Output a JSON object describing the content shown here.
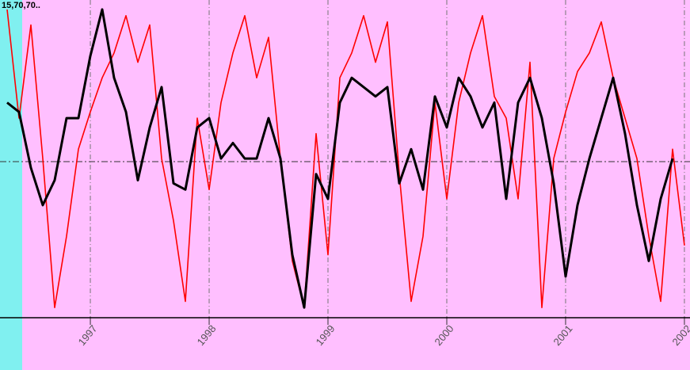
{
  "chart_data": {
    "type": "line",
    "label": "15,70,70..",
    "xlim": [
      1996.293,
      2002.047
    ],
    "xticks": [
      1997,
      1998,
      1999,
      2000,
      2001,
      2002
    ],
    "ylim": [
      0,
      100
    ],
    "hline": 50,
    "grid": true,
    "x": [
      1996.3,
      1996.4,
      1996.5,
      1996.6,
      1996.7,
      1996.8,
      1996.9,
      1997.0,
      1997.1,
      1997.2,
      1997.3,
      1997.4,
      1997.5,
      1997.6,
      1997.7,
      1997.8,
      1997.9,
      1998.0,
      1998.1,
      1998.2,
      1998.3,
      1998.4,
      1998.5,
      1998.6,
      1998.7,
      1998.8,
      1998.9,
      1999.0,
      1999.1,
      1999.2,
      1999.3,
      1999.4,
      1999.5,
      1999.6,
      1999.7,
      1999.8,
      1999.9,
      2000.0,
      2000.1,
      2000.2,
      2000.3,
      2000.4,
      2000.5,
      2000.6,
      2000.7,
      2000.8,
      2000.9,
      2001.0,
      2001.1,
      2001.2,
      2001.3,
      2001.4,
      2001.5,
      2001.6,
      2001.7,
      2001.8,
      2001.9,
      2002.0
    ],
    "series": [
      {
        "color": "#ff0000",
        "values": [
          99,
          64,
          94,
          51,
          3,
          26,
          54,
          66,
          77,
          85,
          97,
          82,
          94,
          51,
          31,
          5,
          64,
          41,
          69,
          85,
          97,
          77,
          90,
          51,
          18,
          3,
          59,
          20,
          77,
          85,
          97,
          82,
          95,
          46,
          5,
          26,
          69,
          38,
          69,
          85,
          97,
          71,
          64,
          38,
          82,
          3,
          51,
          66,
          79,
          85,
          95,
          77,
          64,
          51,
          26,
          5,
          54,
          23
        ]
      },
      {
        "color": "#000000",
        "values": [
          69,
          66,
          48,
          36,
          44,
          64,
          64,
          84,
          99,
          77,
          66,
          44,
          61,
          74,
          43,
          41,
          61,
          64,
          51,
          56,
          51,
          51,
          64,
          51,
          20,
          3,
          46,
          38,
          69,
          77,
          74,
          71,
          74,
          43,
          54,
          41,
          71,
          61,
          77,
          71,
          61,
          69,
          38,
          69,
          77,
          64,
          43,
          13,
          36,
          51,
          64,
          77,
          59,
          36,
          18,
          38,
          51,
          null
        ]
      }
    ]
  }
}
